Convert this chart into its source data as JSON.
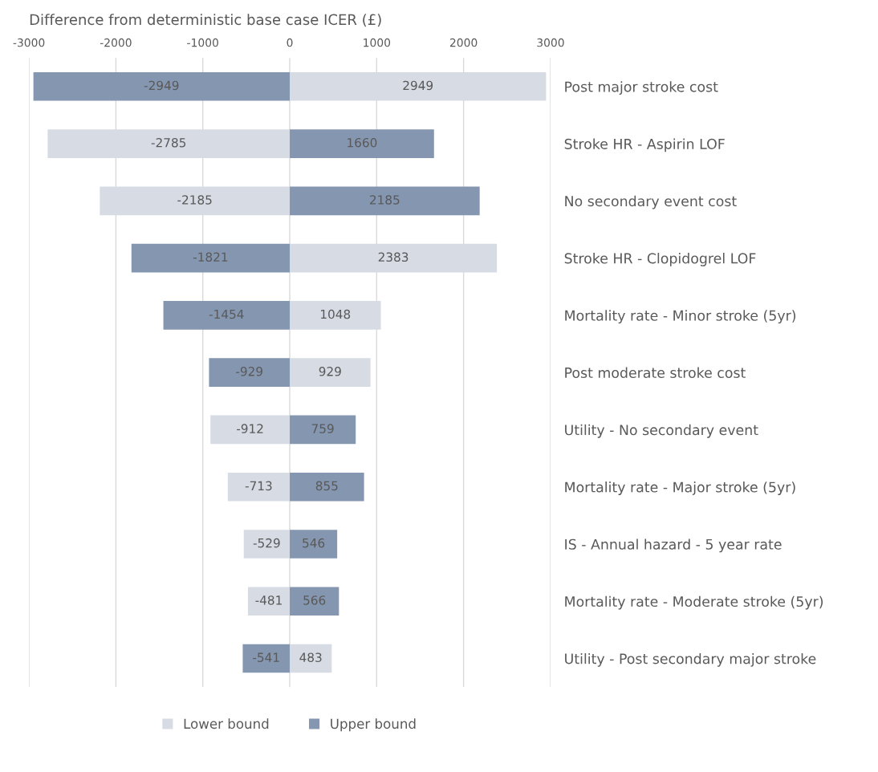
{
  "chart_data": {
    "type": "bar",
    "orientation": "horizontal",
    "xlabel": "Difference from deterministic base case ICER (£)",
    "categories": [
      "Post major stroke cost",
      "Stroke HR - Aspirin LOF",
      "No secondary event cost",
      "Stroke HR - Clopidogrel LOF",
      "Mortality rate - Minor stroke (5yr)",
      "Post moderate stroke cost",
      "Utility - No secondary event",
      "Mortality rate - Major stroke (5yr)",
      "IS - Annual hazard - 5 year rate",
      "Mortality rate - Moderate stroke (5yr)",
      "Utility - Post secondary major stroke"
    ],
    "series": [
      {
        "name": "Lower bound",
        "color": "#d6dbe4",
        "values": [
          2949,
          -2785,
          -2185,
          2383,
          1048,
          929,
          -912,
          -713,
          -529,
          -481,
          483
        ]
      },
      {
        "name": "Upper bound",
        "color": "#8596b0",
        "values": [
          -2949,
          1660,
          2185,
          -1821,
          -1454,
          -929,
          759,
          855,
          546,
          566,
          -541
        ]
      }
    ],
    "xlim": [
      -3000,
      3000
    ],
    "xticks": [
      -3000,
      -2000,
      -1000,
      0,
      1000,
      2000,
      3000
    ],
    "stacked": true,
    "grid": "x",
    "legend": "bottom",
    "data_labels": true
  }
}
